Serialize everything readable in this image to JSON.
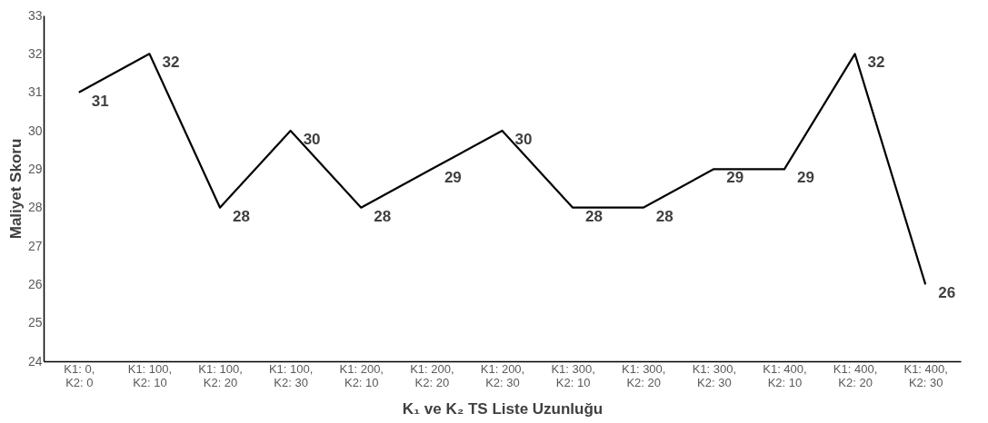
{
  "chart_data": {
    "type": "line",
    "xlabel": "K₁ ve K₂ TS Liste Uzunluğu",
    "ylabel": "Maliyet Skoru",
    "categories": [
      "K1: 0, K2: 0",
      "K1: 100, K2: 10",
      "K1: 100, K2: 20",
      "K1: 100, K2: 30",
      "K1: 200, K2: 10",
      "K1: 200, K2: 20",
      "K1: 200, K2: 30",
      "K1: 300, K2: 10",
      "K1: 300, K2: 20",
      "K1: 300, K2: 30",
      "K1: 400, K2: 10",
      "K1: 400, K2: 20",
      "K1: 400, K2: 30"
    ],
    "series": [
      {
        "color": "#000000",
        "values": [
          31,
          32,
          28,
          30,
          28,
          29,
          30,
          28,
          28,
          29,
          29,
          32,
          26
        ]
      }
    ],
    "ylim": [
      24,
      33
    ],
    "yticks": [
      24,
      25,
      26,
      27,
      28,
      29,
      30,
      31,
      32,
      33
    ],
    "data_labels": true,
    "grid": false,
    "legend": false,
    "marker": "none",
    "line_style": "solid"
  }
}
